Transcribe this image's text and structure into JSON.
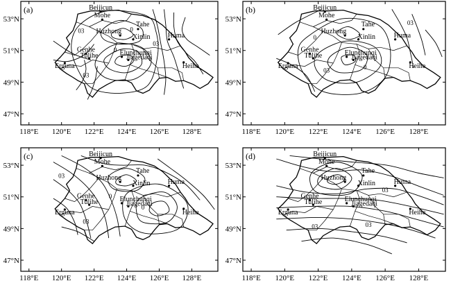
{
  "panels": [
    {
      "id": "a",
      "label": "(a)",
      "cities": [
        {
          "name": "Beijicun",
          "lon": 122.4,
          "lat": 53.45
        },
        {
          "name": "Mohe",
          "lon": 122.5,
          "lat": 52.95
        },
        {
          "name": "Tahe",
          "lon": 124.7,
          "lat": 52.35
        },
        {
          "name": "Huzhong",
          "lon": 123.6,
          "lat": 51.95
        },
        {
          "name": "Xinlin",
          "lon": 124.4,
          "lat": 51.7
        },
        {
          "name": "Huma",
          "lon": 126.6,
          "lat": 51.7
        },
        {
          "name": "Genhe",
          "lon": 121.5,
          "lat": 50.8
        },
        {
          "name": "Tulihe",
          "lon": 121.7,
          "lat": 50.5
        },
        {
          "name": "Elunchunqi",
          "lon": 123.7,
          "lat": 50.6
        },
        {
          "name": "Jiagedaqi",
          "lon": 124.1,
          "lat": 50.4
        },
        {
          "name": "Erguna",
          "lon": 120.2,
          "lat": 50.2
        },
        {
          "name": "Heihe",
          "lon": 127.5,
          "lat": 50.25
        }
      ],
      "contour_labels": [
        {
          "text": "03",
          "lon": 121.2,
          "lat": 52.1
        },
        {
          "text": "0",
          "lon": 124.3,
          "lat": 52.2
        },
        {
          "text": "03",
          "lon": 125.8,
          "lat": 51.3
        },
        {
          "text": "03",
          "lon": 121.5,
          "lat": 49.3
        },
        {
          "text": "0",
          "lon": 123.3,
          "lat": 50.9
        }
      ]
    },
    {
      "id": "b",
      "label": "(b)",
      "cities": [
        {
          "name": "Beijicun",
          "lon": 122.4,
          "lat": 53.45
        },
        {
          "name": "Mohe",
          "lon": 122.5,
          "lat": 52.95
        },
        {
          "name": "Tahe",
          "lon": 124.7,
          "lat": 52.35
        },
        {
          "name": "Huzhong",
          "lon": 123.6,
          "lat": 51.95
        },
        {
          "name": "Xinlin",
          "lon": 124.4,
          "lat": 51.7
        },
        {
          "name": "Huma",
          "lon": 126.6,
          "lat": 51.7
        },
        {
          "name": "Genhe",
          "lon": 121.5,
          "lat": 50.8
        },
        {
          "name": "Tulihe",
          "lon": 121.7,
          "lat": 50.5
        },
        {
          "name": "Elunchunqi",
          "lon": 123.7,
          "lat": 50.6
        },
        {
          "name": "Jiagedaqi",
          "lon": 124.1,
          "lat": 50.4
        },
        {
          "name": "Erguna",
          "lon": 120.2,
          "lat": 50.2
        },
        {
          "name": "Heihe",
          "lon": 127.5,
          "lat": 50.25
        }
      ],
      "contour_labels": [
        {
          "text": "0",
          "lon": 121.8,
          "lat": 51.7
        },
        {
          "text": "03",
          "lon": 127.5,
          "lat": 52.6
        },
        {
          "text": "03",
          "lon": 122.5,
          "lat": 49.6
        },
        {
          "text": "0",
          "lon": 124.8,
          "lat": 49.8
        }
      ]
    },
    {
      "id": "c",
      "label": "(c)",
      "cities": [
        {
          "name": "Beijicun",
          "lon": 122.4,
          "lat": 53.45
        },
        {
          "name": "Mohe",
          "lon": 122.5,
          "lat": 52.95
        },
        {
          "name": "Tahe",
          "lon": 124.7,
          "lat": 52.35
        },
        {
          "name": "Huzhong",
          "lon": 123.6,
          "lat": 51.95
        },
        {
          "name": "Xinlin",
          "lon": 124.4,
          "lat": 51.7
        },
        {
          "name": "Huma",
          "lon": 126.6,
          "lat": 51.7
        },
        {
          "name": "Genhe",
          "lon": 121.5,
          "lat": 50.8
        },
        {
          "name": "Tulihe",
          "lon": 121.7,
          "lat": 50.5
        },
        {
          "name": "Elunchunqi",
          "lon": 123.7,
          "lat": 50.6
        },
        {
          "name": "Jiagedaqi",
          "lon": 124.1,
          "lat": 50.4
        },
        {
          "name": "Erguna",
          "lon": 120.2,
          "lat": 50.2
        },
        {
          "name": "Heihe",
          "lon": 127.5,
          "lat": 50.25
        }
      ],
      "contour_labels": [
        {
          "text": "03",
          "lon": 120.0,
          "lat": 52.2
        },
        {
          "text": "0",
          "lon": 123.0,
          "lat": 50.9
        },
        {
          "text": "03",
          "lon": 121.5,
          "lat": 49.3
        },
        {
          "text": "0",
          "lon": 125.0,
          "lat": 50.2
        }
      ]
    },
    {
      "id": "d",
      "label": "(d)",
      "cities": [
        {
          "name": "Beijicun",
          "lon": 122.4,
          "lat": 53.45
        },
        {
          "name": "Mohe",
          "lon": 122.5,
          "lat": 52.95
        },
        {
          "name": "Tahe",
          "lon": 124.7,
          "lat": 52.35
        },
        {
          "name": "Huzhong",
          "lon": 123.6,
          "lat": 51.95
        },
        {
          "name": "Xinlin",
          "lon": 124.4,
          "lat": 51.7
        },
        {
          "name": "Huma",
          "lon": 126.6,
          "lat": 51.7
        },
        {
          "name": "Genhe",
          "lon": 121.5,
          "lat": 50.8
        },
        {
          "name": "Tulihe",
          "lon": 121.7,
          "lat": 50.5
        },
        {
          "name": "Elunchunqi",
          "lon": 123.7,
          "lat": 50.6
        },
        {
          "name": "Jiagedaqi",
          "lon": 124.1,
          "lat": 50.4
        },
        {
          "name": "Erguna",
          "lon": 120.2,
          "lat": 50.2
        },
        {
          "name": "Heihe",
          "lon": 127.5,
          "lat": 50.25
        }
      ],
      "contour_labels": [
        {
          "text": "03",
          "lon": 126.0,
          "lat": 51.3
        },
        {
          "text": "03",
          "lon": 121.8,
          "lat": 49.0
        },
        {
          "text": "03",
          "lon": 125.0,
          "lat": 49.1
        }
      ]
    }
  ],
  "axes": {
    "x_ticks": [
      "118°E",
      "120°E",
      "122°E",
      "124°E",
      "126°E",
      "128°E"
    ],
    "y_ticks": [
      "53°N",
      "51°N",
      "49°N",
      "47°N"
    ]
  }
}
